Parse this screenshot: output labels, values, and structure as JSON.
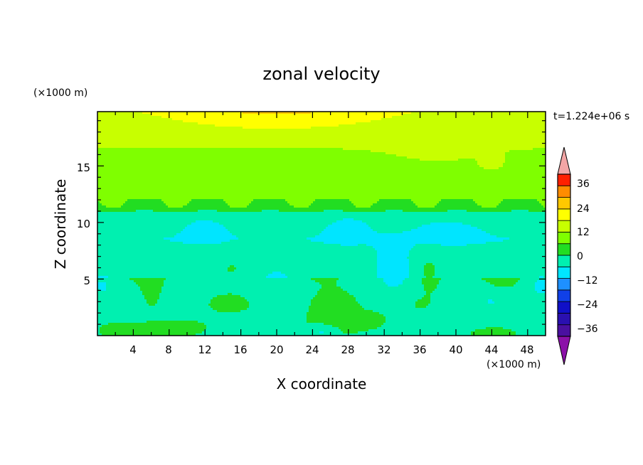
{
  "chart_data": {
    "type": "heatmap",
    "title": "zonal velocity",
    "xlabel": "X coordinate",
    "ylabel": "Z coordinate",
    "x_unit": "(×1000 m)",
    "y_unit": "(×1000 m)",
    "time_label": "t=1.224e+06 s",
    "xlim": [
      0,
      50
    ],
    "ylim": [
      0,
      19.8
    ],
    "x_ticks": [
      "4",
      "8",
      "12",
      "16",
      "20",
      "24",
      "28",
      "32",
      "36",
      "40",
      "44",
      "48"
    ],
    "y_ticks": [
      "5",
      "10",
      "15"
    ],
    "grid": false,
    "colorbar": {
      "placement": "right",
      "min": -42,
      "max": 42,
      "step": 6,
      "tick_labels": [
        "36",
        "24",
        "12",
        "0",
        "−12",
        "−24",
        "−36"
      ],
      "tick_values": [
        36,
        24,
        12,
        0,
        -12,
        -24,
        -36
      ],
      "extend": "both",
      "under_color": "#8b10a8",
      "over_color": "#f3a6a6"
    },
    "levels": [
      {
        "min": -42,
        "max": -36,
        "color": "#4a10a0"
      },
      {
        "min": -36,
        "max": -30,
        "color": "#2a10b0"
      },
      {
        "min": -30,
        "max": -24,
        "color": "#1010c8"
      },
      {
        "min": -24,
        "max": -18,
        "color": "#1040e8"
      },
      {
        "min": -18,
        "max": -12,
        "color": "#1e90ff"
      },
      {
        "min": -12,
        "max": -6,
        "color": "#00e5ff"
      },
      {
        "min": -6,
        "max": 0,
        "color": "#00f0b0"
      },
      {
        "min": 0,
        "max": 6,
        "color": "#22dd22"
      },
      {
        "min": 6,
        "max": 12,
        "color": "#7fff00"
      },
      {
        "min": 12,
        "max": 18,
        "color": "#c8ff00"
      },
      {
        "min": 18,
        "max": 24,
        "color": "#ffff00"
      },
      {
        "min": 24,
        "max": 30,
        "color": "#ffc800"
      },
      {
        "min": 30,
        "max": 36,
        "color": "#ff8c00"
      },
      {
        "min": 36,
        "max": 42,
        "color": "#ff2000"
      }
    ],
    "field_description": "Zonal velocity contours: weak positive values (green–yellow) above ~11 km, weak negative (cyan) between ~5 and ~11 km, mixed cells near the surface"
  }
}
